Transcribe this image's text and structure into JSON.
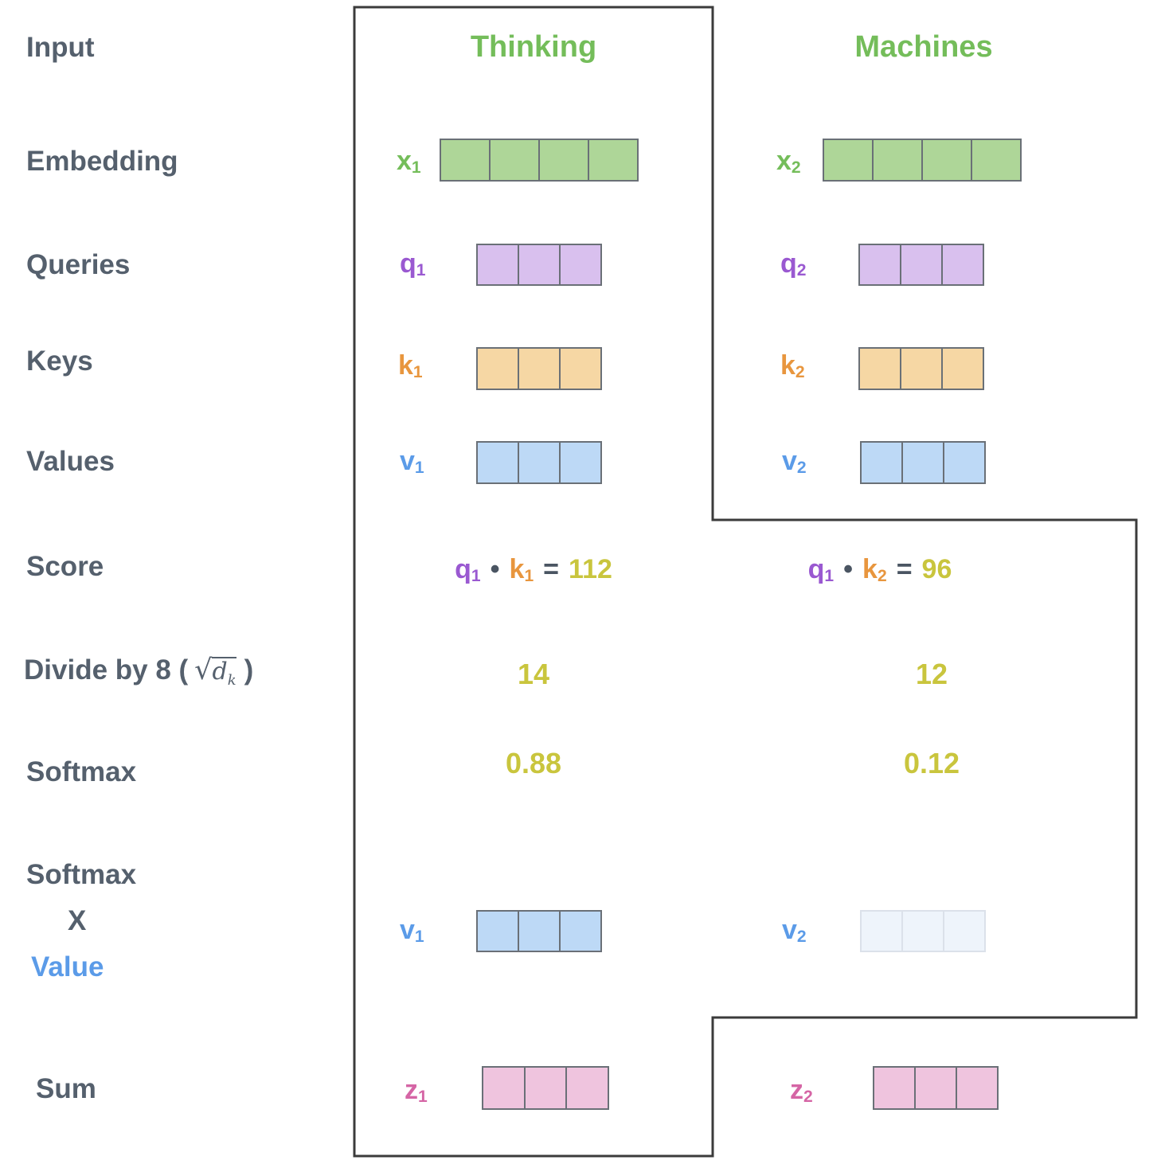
{
  "colors": {
    "green-label": "#74bd5a",
    "green-fill": "#aed698",
    "purple-label": "#9a59d1",
    "purple-fill": "#d9c0ee",
    "orange-label": "#e8963e",
    "orange-fill": "#f6d7a4",
    "blue-label": "#5b9be8",
    "blue-fill": "#bdd9f6",
    "blue-faded-fill": "#eef4fb",
    "blue-faded-border": "#dbe1ea",
    "pink-label": "#d565a5",
    "pink-fill": "#efc4de",
    "yellow-value": "#c9c53d",
    "text-dark": "#55606d",
    "text-darker": "#4a5562",
    "cell-border": "#6a7077",
    "outline": "#3b3b3b"
  },
  "row_labels": {
    "input": "Input",
    "embedding": "Embedding",
    "queries": "Queries",
    "keys": "Keys",
    "values": "Values",
    "score": "Score",
    "softmax": "Softmax",
    "sum": "Sum"
  },
  "divide_label": {
    "prefix": "Divide by 8 (",
    "radical": "√",
    "radicand": "d",
    "radicand_sub": "k",
    "suffix": ")"
  },
  "softmax_x_value": {
    "line1": "Softmax",
    "line2": "X",
    "line3": "Value"
  },
  "words": {
    "word1": "Thinking",
    "word2": "Machines"
  },
  "vectors": {
    "x1": {
      "base": "x",
      "sub": "1",
      "cells": 4
    },
    "x2": {
      "base": "x",
      "sub": "2",
      "cells": 4
    },
    "q1": {
      "base": "q",
      "sub": "1",
      "cells": 3
    },
    "q2": {
      "base": "q",
      "sub": "2",
      "cells": 3
    },
    "k1": {
      "base": "k",
      "sub": "1",
      "cells": 3
    },
    "k2": {
      "base": "k",
      "sub": "2",
      "cells": 3
    },
    "v1": {
      "base": "v",
      "sub": "1",
      "cells": 3
    },
    "v2": {
      "base": "v",
      "sub": "2",
      "cells": 3
    },
    "z1": {
      "base": "z",
      "sub": "1",
      "cells": 3
    },
    "z2": {
      "base": "z",
      "sub": "2",
      "cells": 3
    }
  },
  "scores": {
    "s1": {
      "q": "q",
      "q_sub": "1",
      "dot": "•",
      "k": "k",
      "k_sub": "1",
      "eq": "=",
      "value": "112"
    },
    "s2": {
      "q": "q",
      "q_sub": "1",
      "dot": "•",
      "k": "k",
      "k_sub": "2",
      "eq": "=",
      "value": "96"
    }
  },
  "divide_values": {
    "col1": "14",
    "col2": "12"
  },
  "softmax_values": {
    "col1": "0.88",
    "col2": "0.12"
  }
}
